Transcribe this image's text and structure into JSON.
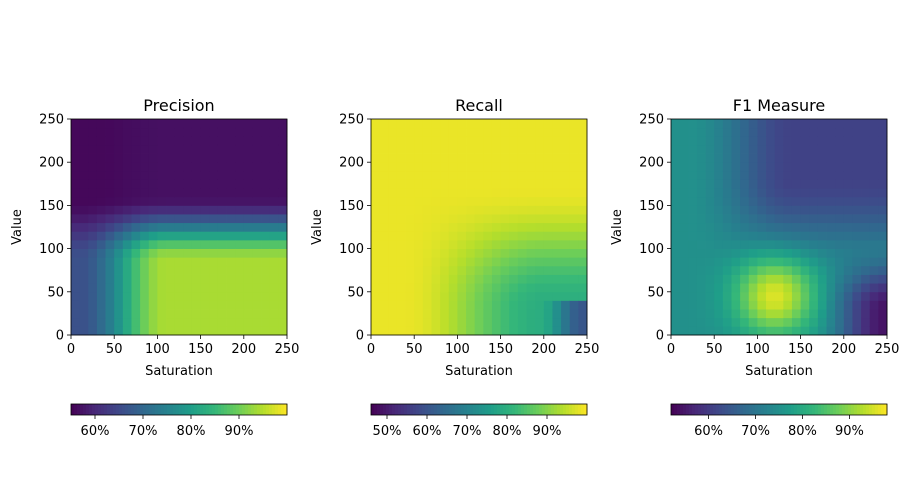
{
  "chart_data": [
    {
      "type": "heatmap",
      "title": "Precision",
      "xlabel": "Saturation",
      "ylabel": "Value",
      "xlim": [
        0,
        250
      ],
      "ylim": [
        0,
        250
      ],
      "xticks": [
        "0",
        "50",
        "100",
        "150",
        "200",
        "250"
      ],
      "yticks": [
        "0",
        "50",
        "100",
        "150",
        "200",
        "250"
      ],
      "colormap": "viridis",
      "colorbar": {
        "range": [
          55,
          100
        ],
        "ticks": [
          "60%",
          "70%",
          "80%",
          "90%"
        ],
        "tick_values": [
          60,
          70,
          80,
          90
        ]
      }
    },
    {
      "type": "heatmap",
      "title": "Recall",
      "xlabel": "Saturation",
      "ylabel": "Value",
      "xlim": [
        0,
        250
      ],
      "ylim": [
        0,
        250
      ],
      "xticks": [
        "0",
        "50",
        "100",
        "150",
        "200",
        "250"
      ],
      "yticks": [
        "0",
        "50",
        "100",
        "150",
        "200",
        "250"
      ],
      "colormap": "viridis",
      "colorbar": {
        "range": [
          46,
          100
        ],
        "ticks": [
          "50%",
          "60%",
          "70%",
          "80%",
          "90%"
        ],
        "tick_values": [
          50,
          60,
          70,
          80,
          90
        ]
      }
    },
    {
      "type": "heatmap",
      "title": "F1 Measure",
      "xlabel": "Saturation",
      "ylabel": "Value",
      "xlim": [
        0,
        250
      ],
      "ylim": [
        0,
        250
      ],
      "xticks": [
        "0",
        "50",
        "100",
        "150",
        "200",
        "250"
      ],
      "yticks": [
        "0",
        "50",
        "100",
        "150",
        "200",
        "250"
      ],
      "colormap": "viridis",
      "colorbar": {
        "range": [
          52,
          98
        ],
        "ticks": [
          "60%",
          "70%",
          "80%",
          "90%"
        ],
        "tick_values": [
          60,
          70,
          80,
          90
        ]
      }
    }
  ],
  "colors": {
    "viridis": [
      "#440154",
      "#482878",
      "#3e4989",
      "#31688e",
      "#26828e",
      "#1f9e89",
      "#35b779",
      "#6ece58",
      "#b5de2b",
      "#fde725"
    ]
  }
}
